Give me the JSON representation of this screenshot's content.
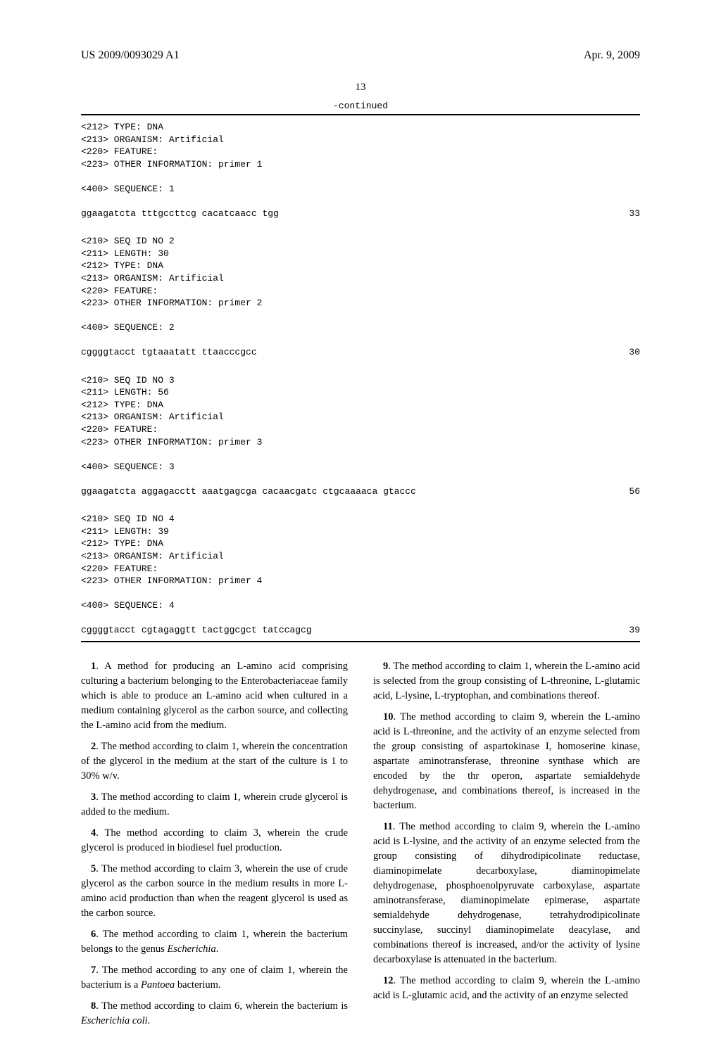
{
  "header": {
    "pub_number": "US 2009/0093029 A1",
    "pub_date": "Apr. 9, 2009"
  },
  "page_number": "13",
  "continued_label": "-continued",
  "sequences": [
    {
      "meta": [
        "<212> TYPE: DNA",
        "<213> ORGANISM: Artificial",
        "<220> FEATURE:",
        "<223> OTHER INFORMATION: primer 1"
      ],
      "seq_label": "<400> SEQUENCE: 1",
      "seq": "ggaagatcta tttgccttcg cacatcaacc tgg",
      "len": "33"
    },
    {
      "meta": [
        "<210> SEQ ID NO 2",
        "<211> LENGTH: 30",
        "<212> TYPE: DNA",
        "<213> ORGANISM: Artificial",
        "<220> FEATURE:",
        "<223> OTHER INFORMATION: primer 2"
      ],
      "seq_label": "<400> SEQUENCE: 2",
      "seq": "cggggtacct tgtaaatatt ttaacccgcc",
      "len": "30"
    },
    {
      "meta": [
        "<210> SEQ ID NO 3",
        "<211> LENGTH: 56",
        "<212> TYPE: DNA",
        "<213> ORGANISM: Artificial",
        "<220> FEATURE:",
        "<223> OTHER INFORMATION: primer 3"
      ],
      "seq_label": "<400> SEQUENCE: 3",
      "seq": "ggaagatcta aggagacctt aaatgagcga cacaacgatc ctgcaaaaca gtaccc",
      "len": "56"
    },
    {
      "meta": [
        "<210> SEQ ID NO 4",
        "<211> LENGTH: 39",
        "<212> TYPE: DNA",
        "<213> ORGANISM: Artificial",
        "<220> FEATURE:",
        "<223> OTHER INFORMATION: primer 4"
      ],
      "seq_label": "<400> SEQUENCE: 4",
      "seq": "cggggtacct cgtagaggtt tactggcgct tatccagcg",
      "len": "39"
    }
  ],
  "claims": {
    "left": [
      {
        "num": "1",
        "text": ". A method for producing an L-amino acid comprising culturing a bacterium belonging to the Enterobacteriaceae family which is able to produce an L-amino acid when cultured in a medium containing glycerol as the carbon source, and collecting the L-amino acid from the medium."
      },
      {
        "num": "2",
        "text": ". The method according to claim 1, wherein the concentration of the glycerol in the medium at the start of the culture is 1 to 30% w/v."
      },
      {
        "num": "3",
        "text": ". The method according to claim 1, wherein crude glycerol is added to the medium."
      },
      {
        "num": "4",
        "text": ". The method according to claim 3, wherein the crude glycerol is produced in biodiesel fuel production."
      },
      {
        "num": "5",
        "text": ". The method according to claim 3, wherein the use of crude glycerol as the carbon source in the medium results in more L-amino acid production than when the reagent glycerol is used as the carbon source."
      },
      {
        "num": "6",
        "text": ". The method according to claim 1, wherein the bacterium belongs to the genus ",
        "em": "Escherichia",
        "tail": "."
      },
      {
        "num": "7",
        "text": ". The method according to any one of claim 1, wherein the bacterium is a ",
        "em": "Pantoea",
        "tail": " bacterium."
      },
      {
        "num": "8",
        "text": ". The method according to claim 6, wherein the bacterium is ",
        "em": "Escherichia coli",
        "tail": "."
      }
    ],
    "right": [
      {
        "num": "9",
        "text": ". The method according to claim 1, wherein the L-amino acid is selected from the group consisting of L-threonine, L-glutamic acid, L-lysine, L-tryptophan, and combinations thereof."
      },
      {
        "num": "10",
        "text": ". The method according to claim 9, wherein the L-amino acid is L-threonine, and the activity of an enzyme selected from the group consisting of aspartokinase I, homoserine kinase, aspartate aminotransferase, threonine synthase which are encoded by the thr operon, aspartate semialdehyde dehydrogenase, and combinations thereof, is increased in the bacterium."
      },
      {
        "num": "11",
        "text": ". The method according to claim 9, wherein the L-amino acid is L-lysine, and the activity of an enzyme selected from the group consisting of dihydrodipicolinate reductase, diaminopimelate decarboxylase, diaminopimelate dehydrogenase, phosphoenolpyruvate carboxylase, aspartate aminotransferase, diaminopimelate epimerase, aspartate semialdehyde dehydrogenase, tetrahydrodipicolinate succinylase, succinyl diaminopimelate deacylase, and combinations thereof is increased, and/or the activity of lysine decarboxylase is attenuated in the bacterium."
      },
      {
        "num": "12",
        "text": ". The method according to claim 9, wherein the L-amino acid is L-glutamic acid, and the activity of an enzyme selected"
      }
    ]
  }
}
